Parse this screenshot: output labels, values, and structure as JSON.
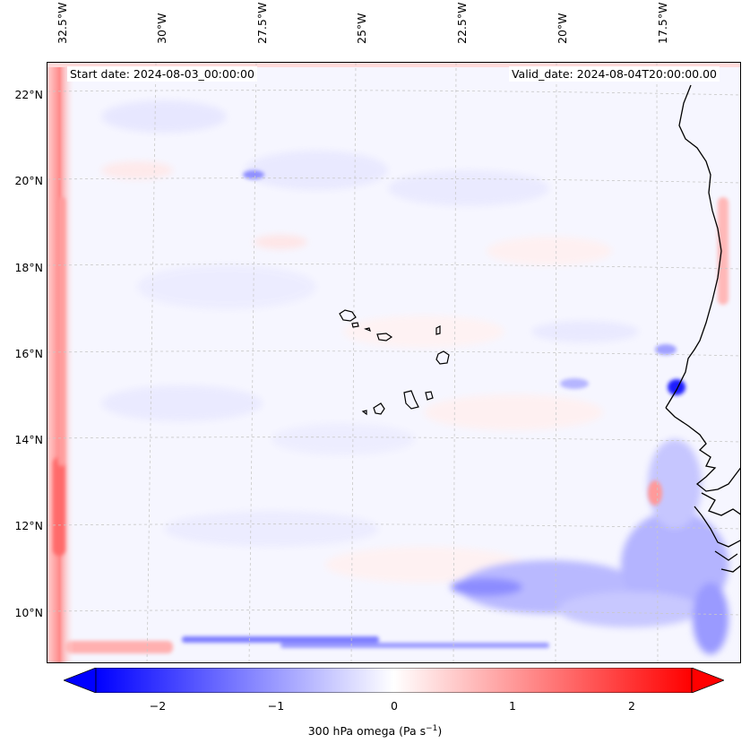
{
  "map": {
    "lon_labels": [
      "32.5°W",
      "30°W",
      "27.5°W",
      "25°W",
      "22.5°W",
      "20°W",
      "17.5°W"
    ],
    "lat_labels": [
      "22°N",
      "20°N",
      "18°N",
      "16°N",
      "14°N",
      "12°N",
      "10°N"
    ],
    "start_date": "Start date: 2024-08-03_00:00:00",
    "valid_date": "Valid_date: 2024-08-04T20:00:00.00",
    "field": "300 hPa omega",
    "colormap": "bwr",
    "colors": {
      "negative": "#0000ff",
      "zero": "#ffffff",
      "positive": "#ff0000",
      "coastline": "#000000"
    }
  },
  "colorbar": {
    "ticks": [
      "−2",
      "−1",
      "0",
      "1",
      "2"
    ],
    "range": [
      -2.75,
      2.75
    ],
    "label_main": "300 hPa omega (Pa s",
    "label_sup": "−1",
    "label_end": ")",
    "extend": "both"
  }
}
